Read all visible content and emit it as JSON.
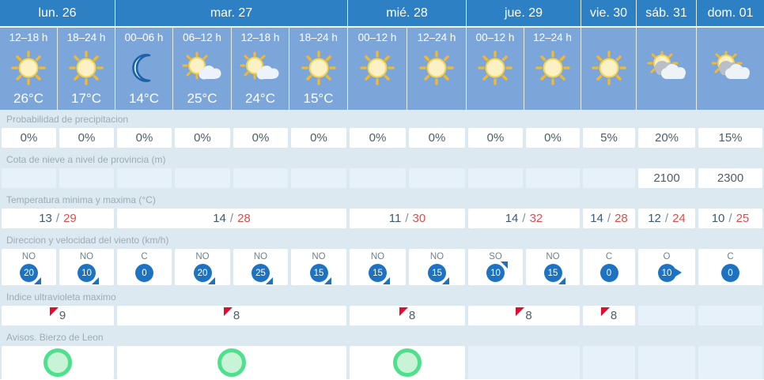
{
  "palette": {
    "header_blue": "#2e80c4",
    "cell_blue": "#7ca6da",
    "band_background": "#dce9f1",
    "empty_cell": "#e7f1f9",
    "wind_badge_blue": "#1d73c1",
    "temp_min_color": "#3d5a73",
    "temp_max_color": "#e24b4b",
    "uv_flag_red": "#e30b2e",
    "warning_green": "#4ee08c"
  },
  "days": [
    {
      "label": "lun. 26"
    },
    {
      "label": "mar. 27"
    },
    {
      "label": "mié. 28"
    },
    {
      "label": "jue. 29"
    },
    {
      "label": "vie. 30"
    },
    {
      "label": "sáb. 31"
    },
    {
      "label": "dom. 01"
    }
  ],
  "forecast_cells": [
    {
      "time": "12–18 h",
      "icon": "sun",
      "temp": "26°C"
    },
    {
      "time": "18–24 h",
      "icon": "sun",
      "temp": "17°C"
    },
    {
      "time": "00–06 h",
      "icon": "moon",
      "temp": "14°C"
    },
    {
      "time": "06–12 h",
      "icon": "sun-cloud",
      "temp": "25°C"
    },
    {
      "time": "12–18 h",
      "icon": "sun-cloud",
      "temp": "24°C"
    },
    {
      "time": "18–24 h",
      "icon": "sun",
      "temp": "15°C"
    },
    {
      "time": "00–12 h",
      "icon": "sun",
      "temp": ""
    },
    {
      "time": "12–24 h",
      "icon": "sun",
      "temp": ""
    },
    {
      "time": "00–12 h",
      "icon": "sun",
      "temp": ""
    },
    {
      "time": "12–24 h",
      "icon": "sun",
      "temp": ""
    },
    {
      "time": "",
      "icon": "sun",
      "temp": ""
    },
    {
      "time": "",
      "icon": "sun-clouds",
      "temp": ""
    },
    {
      "time": "",
      "icon": "sun-clouds",
      "temp": ""
    }
  ],
  "rows": {
    "precipitation": {
      "label": "Probabilidad de precipitacion",
      "values": [
        "0%",
        "0%",
        "0%",
        "0%",
        "0%",
        "0%",
        "0%",
        "0%",
        "0%",
        "0%",
        "5%",
        "20%",
        "15%"
      ]
    },
    "snow_level": {
      "label": "Cota de nieve a nivel de provincia (m)",
      "values": [
        "",
        "",
        "",
        "",
        "",
        "",
        "",
        "",
        "",
        "",
        "",
        "2100",
        "2300"
      ]
    },
    "temperature": {
      "label": "Temperatura minima y maxima (°C)",
      "separator": "/",
      "values": [
        {
          "min": "13",
          "max": "29"
        },
        {
          "min": "14",
          "max": "28"
        },
        {
          "min": "11",
          "max": "30"
        },
        {
          "min": "14",
          "max": "32"
        },
        {
          "min": "14",
          "max": "28"
        },
        {
          "min": "12",
          "max": "24"
        },
        {
          "min": "10",
          "max": "25"
        }
      ]
    },
    "wind": {
      "label": "Direccion y velocidad del viento (km/h)",
      "values": [
        {
          "dir": "NO",
          "speed": "20",
          "arrow": "se"
        },
        {
          "dir": "NO",
          "speed": "10",
          "arrow": "se"
        },
        {
          "dir": "C",
          "speed": "0",
          "arrow": ""
        },
        {
          "dir": "NO",
          "speed": "20",
          "arrow": "se"
        },
        {
          "dir": "NO",
          "speed": "25",
          "arrow": "se"
        },
        {
          "dir": "NO",
          "speed": "15",
          "arrow": "se"
        },
        {
          "dir": "NO",
          "speed": "15",
          "arrow": "se"
        },
        {
          "dir": "NO",
          "speed": "15",
          "arrow": "se"
        },
        {
          "dir": "SO",
          "speed": "10",
          "arrow": "ne"
        },
        {
          "dir": "NO",
          "speed": "15",
          "arrow": "se"
        },
        {
          "dir": "C",
          "speed": "0",
          "arrow": ""
        },
        {
          "dir": "O",
          "speed": "10",
          "arrow": "e"
        },
        {
          "dir": "C",
          "speed": "0",
          "arrow": ""
        }
      ]
    },
    "uv": {
      "label": "Indice ultravioleta maximo",
      "values": [
        "9",
        "8",
        "8",
        "8",
        "8",
        "",
        ""
      ]
    },
    "warnings": {
      "label": "Avisos. Bierzo de Leon",
      "values": [
        "green",
        "green",
        "green",
        "",
        "",
        "",
        ""
      ]
    }
  }
}
